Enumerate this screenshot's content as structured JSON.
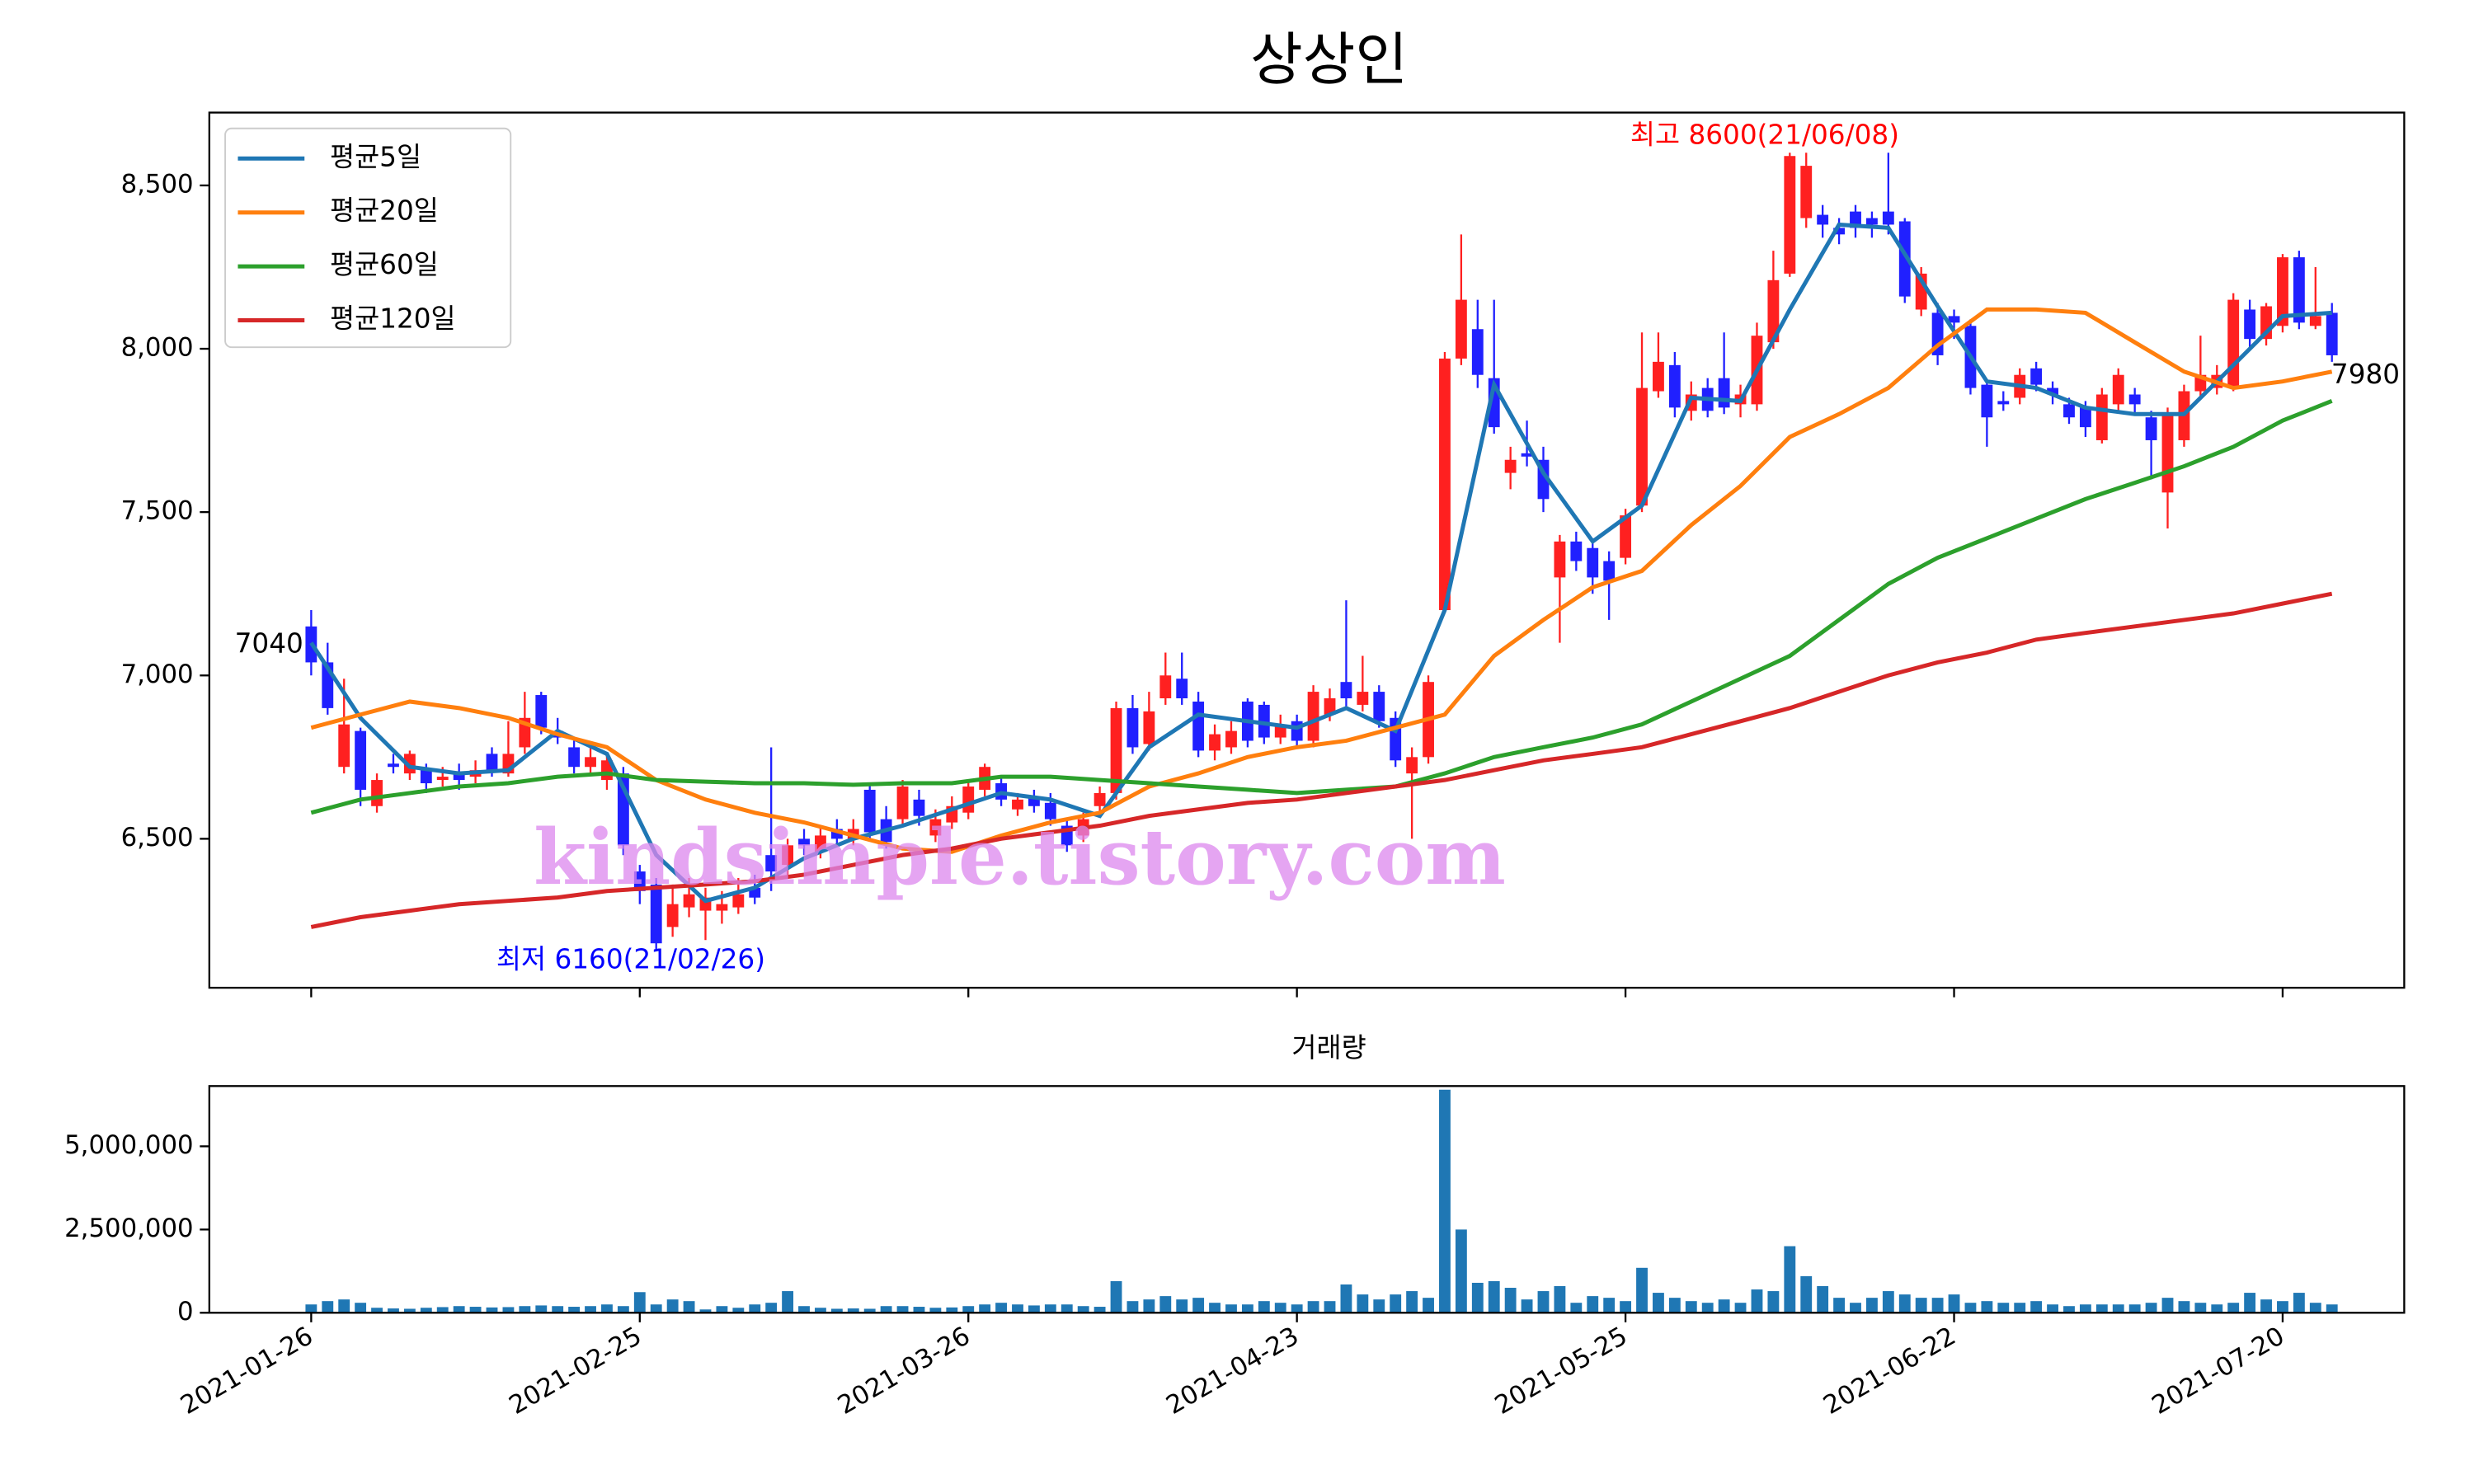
{
  "chart_data": [
    {
      "type": "candlestick",
      "title": "상상인",
      "watermark": "kindsimple.tistory.com",
      "up_color": "#ff2020",
      "down_color": "#2020ff",
      "open": [
        7150,
        7040,
        6720,
        6830,
        6600,
        6730,
        6700,
        6710,
        6680,
        6700,
        6690,
        6760,
        6700,
        6780,
        6940,
        6830,
        6780,
        6720,
        6680,
        6700,
        6400,
        6360,
        6230,
        6290,
        6280,
        6280,
        6290,
        6350,
        6450,
        6420,
        6500,
        6460,
        6530,
        6500,
        6650,
        6560,
        6560,
        6620,
        6510,
        6550,
        6580,
        6650,
        6670,
        6590,
        6630,
        6610,
        6540,
        6510,
        6600,
        6640,
        6900,
        6790,
        6930,
        6990,
        6920,
        6770,
        6780,
        6920,
        6910,
        6810,
        6860,
        6800,
        6880,
        6980,
        6910,
        6950,
        6870,
        6700,
        6750,
        7200,
        7970,
        8060,
        7910,
        7620,
        7680,
        7660,
        7300,
        7410,
        7390,
        7350,
        7360,
        7520,
        7870,
        7950,
        7810,
        7880,
        7910,
        7830,
        7830,
        8020,
        8230,
        8400,
        8410,
        8370,
        8420,
        8400,
        8420,
        8390,
        8120,
        8110,
        8100,
        8070,
        7890,
        7840,
        7850,
        7940,
        7880,
        7830,
        7820,
        7720,
        7830,
        7860,
        7790,
        7560,
        7720,
        7870,
        7880,
        7880,
        8120,
        8030,
        8070,
        8280,
        8070,
        8110
      ],
      "high": [
        7200,
        7100,
        6990,
        6840,
        6700,
        6760,
        6770,
        6730,
        6720,
        6730,
        6740,
        6780,
        6860,
        6950,
        6950,
        6870,
        6800,
        6780,
        6760,
        6720,
        6420,
        6380,
        6360,
        6380,
        6350,
        6340,
        6380,
        6390,
        6780,
        6500,
        6530,
        6540,
        6560,
        6560,
        6670,
        6600,
        6680,
        6650,
        6590,
        6630,
        6680,
        6730,
        6690,
        6640,
        6650,
        6640,
        6560,
        6580,
        6660,
        6920,
        6940,
        6950,
        7070,
        7070,
        6950,
        6850,
        6860,
        6930,
        6920,
        6880,
        6880,
        6970,
        6960,
        7230,
        7060,
        6970,
        6890,
        6780,
        7000,
        7990,
        8350,
        8150,
        8150,
        7700,
        7780,
        7700,
        7430,
        7440,
        7420,
        7380,
        7510,
        8050,
        8050,
        7990,
        7900,
        7910,
        8050,
        7890,
        8080,
        8300,
        8600,
        8600,
        8440,
        8400,
        8440,
        8420,
        8600,
        8400,
        8250,
        8140,
        8120,
        8090,
        7900,
        7870,
        7940,
        7960,
        7900,
        7850,
        7840,
        7880,
        7940,
        7880,
        7810,
        7820,
        7890,
        8040,
        7950,
        8170,
        8150,
        8140,
        8290,
        8300,
        8250,
        8140
      ],
      "low": [
        7000,
        6880,
        6700,
        6600,
        6580,
        6700,
        6680,
        6640,
        6660,
        6650,
        6670,
        6690,
        6690,
        6760,
        6820,
        6790,
        6700,
        6700,
        6650,
        6450,
        6300,
        6160,
        6200,
        6260,
        6190,
        6240,
        6270,
        6300,
        6340,
        6380,
        6450,
        6440,
        6480,
        6480,
        6500,
        6470,
        6540,
        6540,
        6490,
        6530,
        6560,
        6630,
        6600,
        6570,
        6580,
        6540,
        6460,
        6490,
        6580,
        6620,
        6760,
        6770,
        6910,
        6910,
        6750,
        6740,
        6760,
        6780,
        6790,
        6790,
        6780,
        6780,
        6860,
        6900,
        6890,
        6840,
        6720,
        6500,
        6730,
        7190,
        7950,
        7880,
        7740,
        7570,
        7640,
        7500,
        7100,
        7320,
        7250,
        7170,
        7340,
        7500,
        7850,
        7790,
        7780,
        7790,
        7800,
        7790,
        7810,
        8000,
        8220,
        8370,
        8340,
        8320,
        8340,
        8340,
        8350,
        8140,
        8100,
        7950,
        8030,
        7860,
        7700,
        7810,
        7830,
        7870,
        7830,
        7770,
        7730,
        7710,
        7810,
        7800,
        7600,
        7450,
        7700,
        7850,
        7860,
        7870,
        8000,
        8010,
        8050,
        8060,
        8060,
        7960
      ],
      "close": [
        7040,
        6900,
        6850,
        6650,
        6680,
        6720,
        6760,
        6670,
        6690,
        6680,
        6710,
        6710,
        6760,
        6870,
        6840,
        6810,
        6720,
        6750,
        6740,
        6480,
        6340,
        6180,
        6300,
        6330,
        6320,
        6300,
        6330,
        6320,
        6400,
        6480,
        6480,
        6510,
        6500,
        6530,
        6520,
        6490,
        6660,
        6570,
        6560,
        6600,
        6660,
        6720,
        6620,
        6620,
        6600,
        6560,
        6480,
        6560,
        6640,
        6900,
        6780,
        6890,
        7000,
        6930,
        6770,
        6820,
        6830,
        6800,
        6810,
        6850,
        6800,
        6950,
        6930,
        6930,
        6950,
        6860,
        6740,
        6750,
        6980,
        7970,
        8150,
        7920,
        7760,
        7660,
        7670,
        7540,
        7410,
        7350,
        7300,
        7290,
        7490,
        7880,
        7960,
        7820,
        7860,
        7810,
        7820,
        7860,
        8040,
        8210,
        8590,
        8560,
        8380,
        8350,
        8370,
        8380,
        8380,
        8160,
        8230,
        7980,
        8080,
        7880,
        7790,
        7830,
        7920,
        7890,
        7860,
        7790,
        7760,
        7860,
        7920,
        7830,
        7720,
        7800,
        7870,
        7920,
        7920,
        8150,
        8030,
        8130,
        8280,
        8080,
        8100,
        7980
      ],
      "series": [
        {
          "name": "평균5일",
          "color": "#1f77b4",
          "x": [
            0,
            3,
            6,
            9,
            12,
            15,
            18,
            21,
            24,
            27,
            30,
            33,
            36,
            39,
            42,
            45,
            48,
            51,
            54,
            57,
            60,
            63,
            66,
            69,
            72,
            75,
            78,
            81,
            84,
            87,
            90,
            93,
            96,
            99,
            102,
            105,
            108,
            111,
            114,
            117,
            120,
            123
          ],
          "values": [
            7100,
            6870,
            6720,
            6700,
            6710,
            6830,
            6760,
            6450,
            6310,
            6350,
            6440,
            6500,
            6540,
            6590,
            6640,
            6620,
            6570,
            6780,
            6880,
            6860,
            6840,
            6900,
            6830,
            7200,
            7890,
            7620,
            7410,
            7520,
            7850,
            7840,
            8120,
            8380,
            8370,
            8130,
            7900,
            7880,
            7820,
            7800,
            7800,
            7950,
            8100,
            8110
          ]
        },
        {
          "name": "평균20일",
          "color": "#ff7f0e",
          "x": [
            0,
            3,
            6,
            9,
            12,
            15,
            18,
            21,
            24,
            27,
            30,
            33,
            36,
            39,
            42,
            45,
            48,
            51,
            54,
            57,
            60,
            63,
            66,
            69,
            72,
            75,
            78,
            81,
            84,
            87,
            90,
            93,
            96,
            99,
            102,
            105,
            108,
            111,
            114,
            117,
            120,
            123
          ],
          "values": [
            6840,
            6880,
            6920,
            6900,
            6870,
            6820,
            6780,
            6680,
            6620,
            6580,
            6550,
            6510,
            6470,
            6460,
            6510,
            6550,
            6580,
            6660,
            6700,
            6750,
            6780,
            6800,
            6840,
            6880,
            7060,
            7170,
            7270,
            7320,
            7460,
            7580,
            7730,
            7800,
            7880,
            8010,
            8120,
            8120,
            8110,
            8020,
            7930,
            7880,
            7900,
            7930
          ]
        },
        {
          "name": "평균60일",
          "color": "#2ca02c",
          "x": [
            0,
            3,
            6,
            9,
            12,
            15,
            18,
            21,
            24,
            27,
            30,
            33,
            36,
            39,
            42,
            45,
            48,
            51,
            54,
            57,
            60,
            63,
            66,
            69,
            72,
            75,
            78,
            81,
            84,
            87,
            90,
            93,
            96,
            99,
            102,
            105,
            108,
            111,
            114,
            117,
            120,
            123
          ],
          "values": [
            6580,
            6620,
            6640,
            6660,
            6670,
            6690,
            6700,
            6680,
            6675,
            6670,
            6670,
            6665,
            6670,
            6670,
            6690,
            6690,
            6680,
            6670,
            6660,
            6650,
            6640,
            6650,
            6660,
            6700,
            6750,
            6780,
            6810,
            6850,
            6920,
            6990,
            7060,
            7170,
            7280,
            7360,
            7420,
            7480,
            7540,
            7590,
            7640,
            7700,
            7780,
            7840
          ]
        },
        {
          "name": "평균120일",
          "color": "#d62728",
          "x": [
            0,
            3,
            6,
            9,
            12,
            15,
            18,
            21,
            24,
            27,
            30,
            33,
            36,
            39,
            42,
            45,
            48,
            51,
            54,
            57,
            60,
            63,
            66,
            69,
            72,
            75,
            78,
            81,
            84,
            87,
            90,
            93,
            96,
            99,
            102,
            105,
            108,
            111,
            114,
            117,
            120,
            123
          ],
          "values": [
            6230,
            6260,
            6280,
            6300,
            6310,
            6320,
            6340,
            6350,
            6360,
            6370,
            6390,
            6420,
            6450,
            6470,
            6500,
            6520,
            6540,
            6570,
            6590,
            6610,
            6620,
            6640,
            6660,
            6680,
            6710,
            6740,
            6760,
            6780,
            6820,
            6860,
            6900,
            6950,
            7000,
            7040,
            7070,
            7110,
            7130,
            7150,
            7170,
            7190,
            7220,
            7250
          ]
        }
      ],
      "annotations": [
        {
          "text": "최고 8600(21/06/08)",
          "color": "#ff0000"
        },
        {
          "text": "최저 6160(21/02/26)",
          "color": "#0000ff"
        }
      ],
      "start_label": 7040,
      "end_label": 7980,
      "legend": "upper left",
      "xlim": [
        -6.2,
        127.4
      ],
      "xticks": [
        0,
        20,
        40,
        60,
        80,
        100,
        120
      ],
      "ylim": [
        6044,
        8723
      ],
      "yticks": [
        {
          "value": 6500,
          "label": "6,500"
        },
        {
          "value": 7000,
          "label": "7,000"
        },
        {
          "value": 7500,
          "label": "7,500"
        },
        {
          "value": 8000,
          "label": "8,000"
        },
        {
          "value": 8500,
          "label": "8,500"
        }
      ]
    },
    {
      "type": "bar",
      "title": "거래량",
      "color": "#1f77b4",
      "values": [
        250000,
        350000,
        400000,
        300000,
        150000,
        130000,
        120000,
        150000,
        170000,
        200000,
        180000,
        160000,
        170000,
        200000,
        220000,
        200000,
        180000,
        200000,
        250000,
        200000,
        620000,
        250000,
        400000,
        350000,
        100000,
        200000,
        150000,
        250000,
        300000,
        650000,
        200000,
        150000,
        120000,
        130000,
        120000,
        200000,
        200000,
        180000,
        150000,
        160000,
        200000,
        250000,
        300000,
        250000,
        220000,
        250000,
        250000,
        200000,
        180000,
        950000,
        350000,
        400000,
        500000,
        400000,
        450000,
        300000,
        250000,
        250000,
        350000,
        300000,
        250000,
        350000,
        350000,
        850000,
        550000,
        400000,
        550000,
        650000,
        450000,
        6700000,
        2500000,
        900000,
        950000,
        750000,
        400000,
        650000,
        800000,
        300000,
        500000,
        450000,
        350000,
        1350000,
        600000,
        450000,
        350000,
        300000,
        400000,
        300000,
        700000,
        650000,
        2000000,
        1100000,
        800000,
        450000,
        300000,
        450000,
        650000,
        550000,
        450000,
        450000,
        550000,
        300000,
        350000,
        300000,
        300000,
        350000,
        250000,
        200000,
        250000,
        250000,
        250000,
        250000,
        300000,
        450000,
        350000,
        300000,
        250000,
        300000,
        600000,
        400000,
        350000,
        600000,
        300000,
        250000
      ],
      "xlim": [
        -6.2,
        127.4
      ],
      "xticks": [
        {
          "value": 0,
          "label": "2021-01-26"
        },
        {
          "value": 20,
          "label": "2021-02-25"
        },
        {
          "value": 40,
          "label": "2021-03-26"
        },
        {
          "value": 60,
          "label": "2021-04-23"
        },
        {
          "value": 80,
          "label": "2021-05-25"
        },
        {
          "value": 100,
          "label": "2021-06-22"
        },
        {
          "value": 120,
          "label": "2021-07-20"
        }
      ],
      "ylim": [
        0,
        6810000
      ],
      "yticks": [
        0,
        {
          "value": 2500000,
          "label": "2,500,000"
        },
        {
          "value": 5000000,
          "label": "5,000,000"
        }
      ]
    }
  ]
}
